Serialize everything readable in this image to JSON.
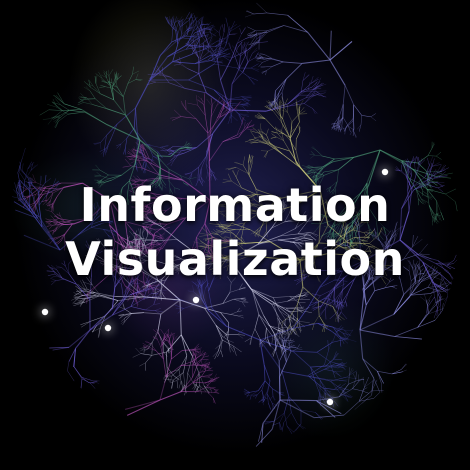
{
  "title": {
    "line1": "Information",
    "line2": "Visualization"
  },
  "colors": {
    "background": "#000000",
    "text": "#ffffff",
    "edges": [
      "#4a4ab8",
      "#6a5acd",
      "#8c8ce0",
      "#b04fb0",
      "#4fa07a",
      "#c9c97a",
      "#d8d8f0"
    ]
  }
}
